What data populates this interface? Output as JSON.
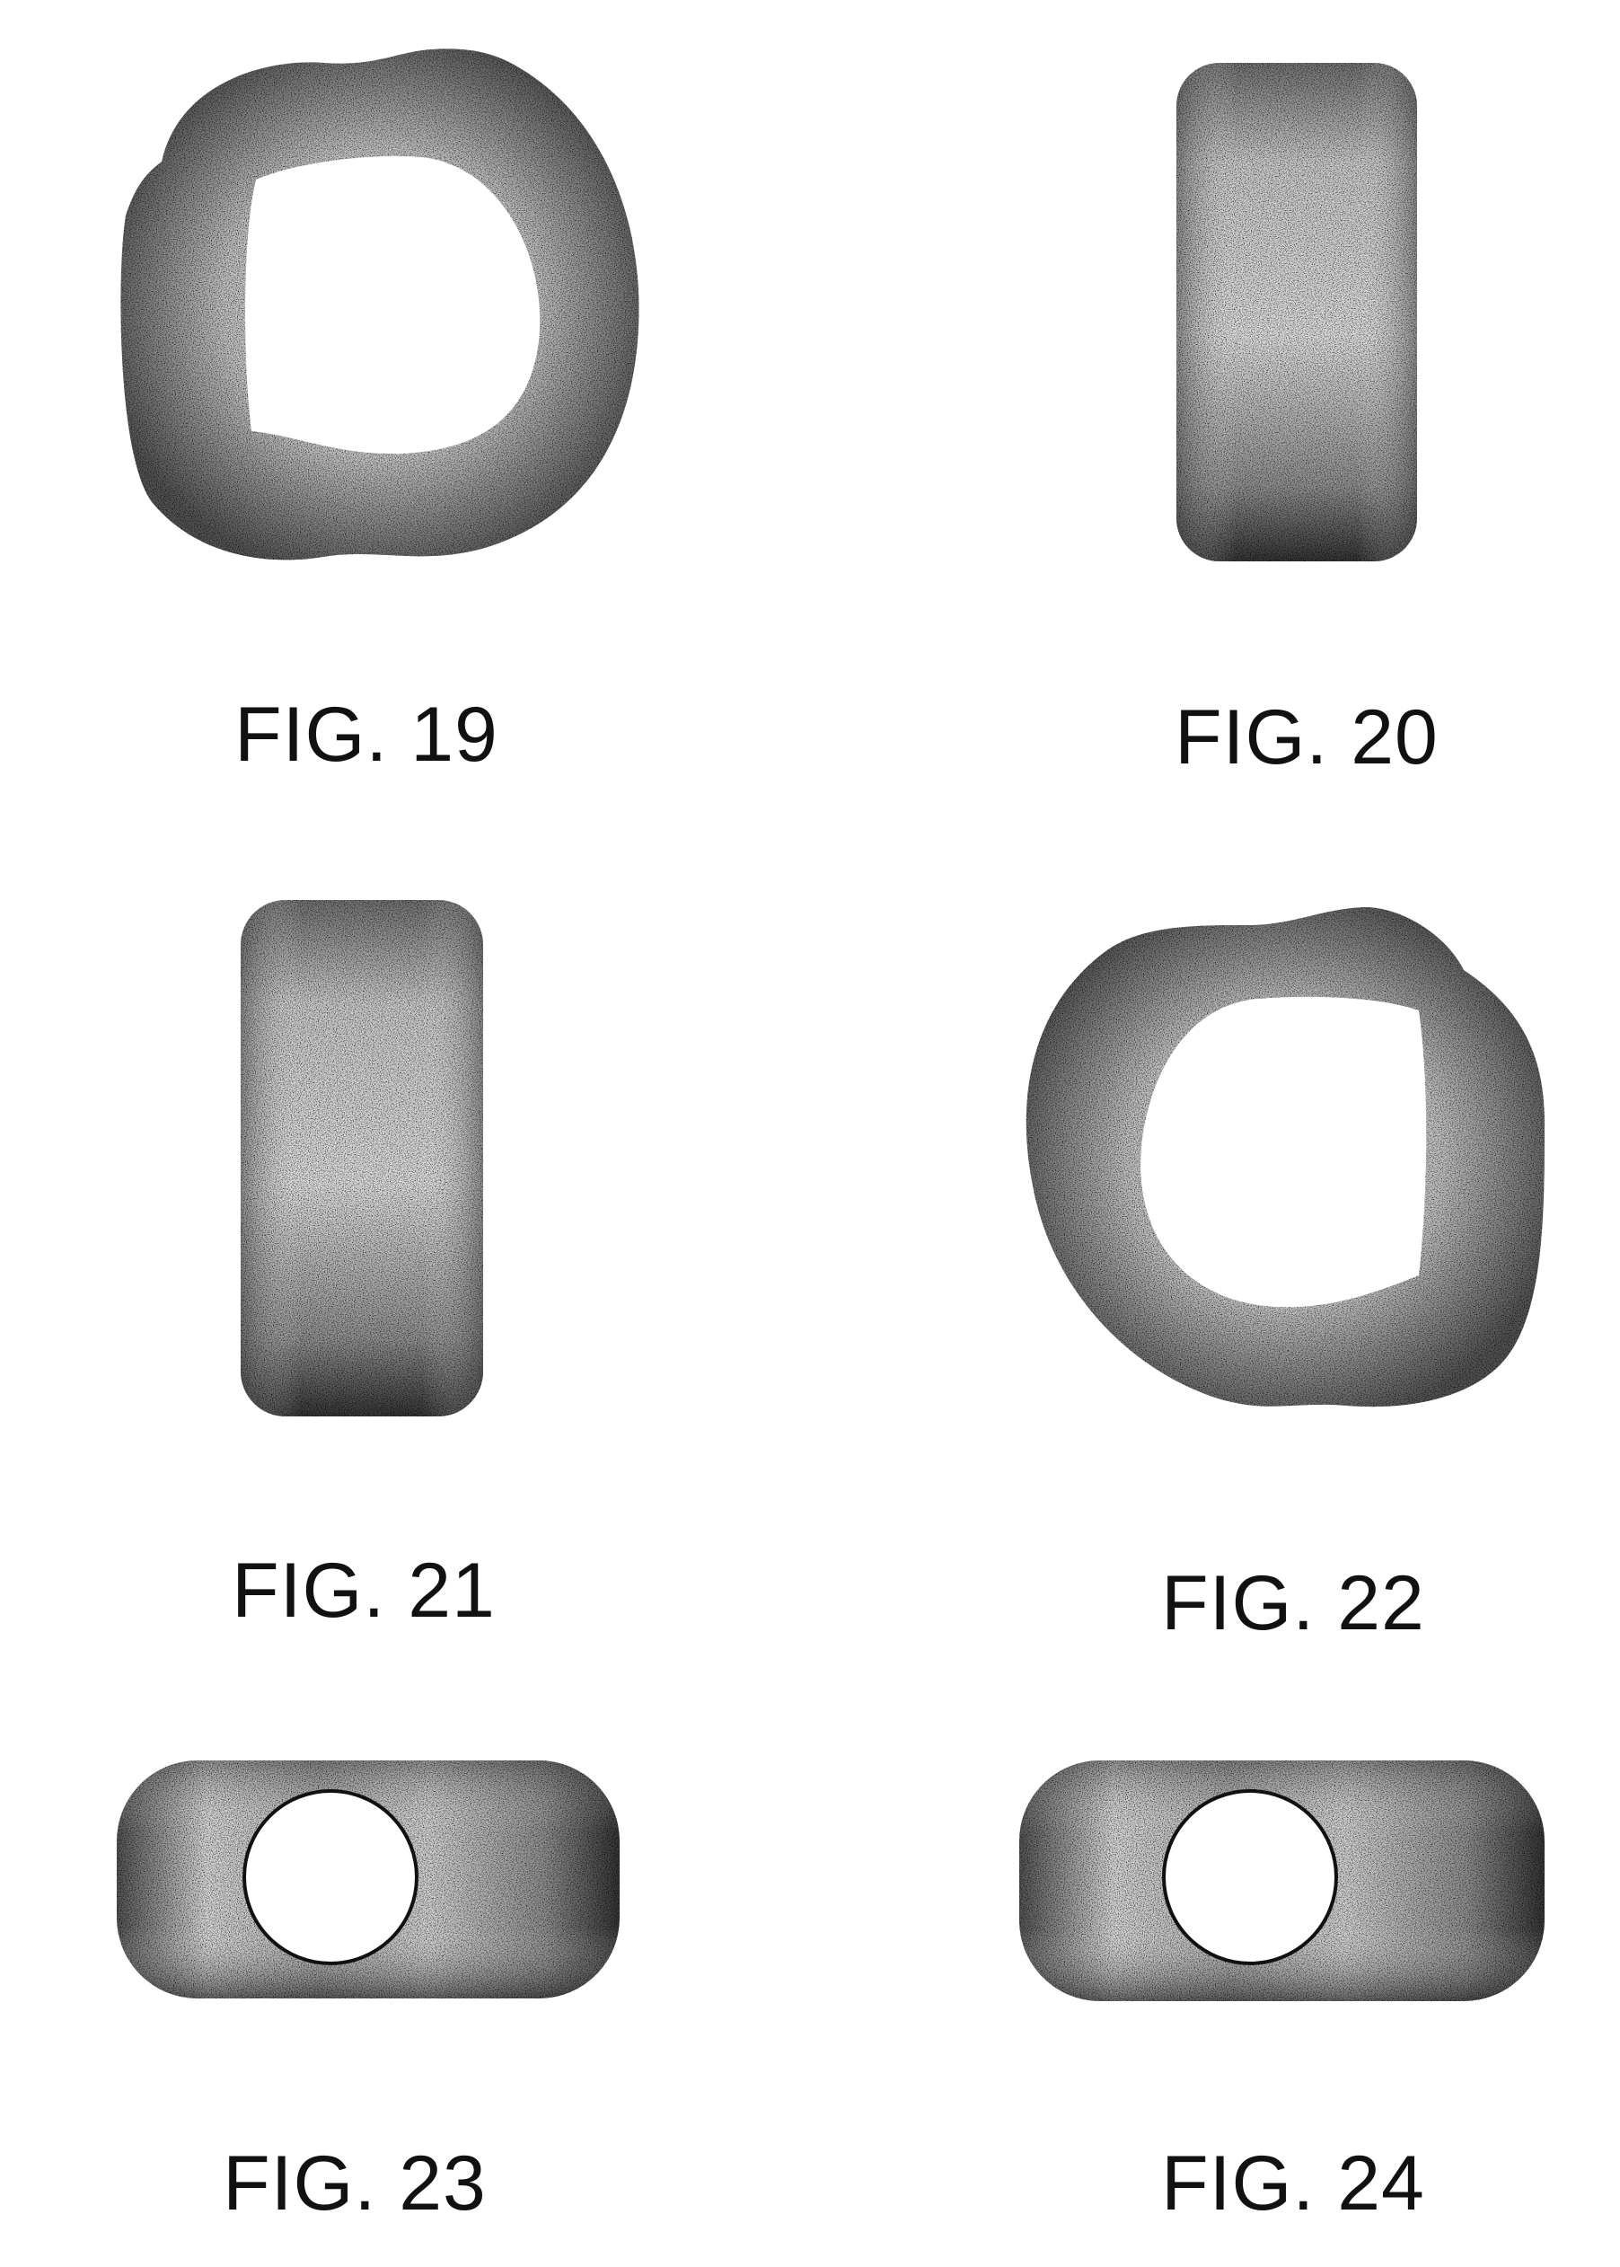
{
  "figures": [
    {
      "id": "fig19",
      "label": "FIG. 19",
      "shape": "d-ring-view"
    },
    {
      "id": "fig20",
      "label": "FIG. 20",
      "shape": "side-view-vertical"
    },
    {
      "id": "fig21",
      "label": "FIG. 21",
      "shape": "side-view-vertical"
    },
    {
      "id": "fig22",
      "label": "FIG. 22",
      "shape": "d-ring-view-mirrored"
    },
    {
      "id": "fig23",
      "label": "FIG. 23",
      "shape": "end-view-with-bore"
    },
    {
      "id": "fig24",
      "label": "FIG. 24",
      "shape": "end-view-with-bore"
    }
  ],
  "colors": {
    "background": "#ffffff",
    "stipple_dark": "#1a1a1a",
    "stipple_light": "#f2f2f2",
    "outline": "#111111"
  }
}
